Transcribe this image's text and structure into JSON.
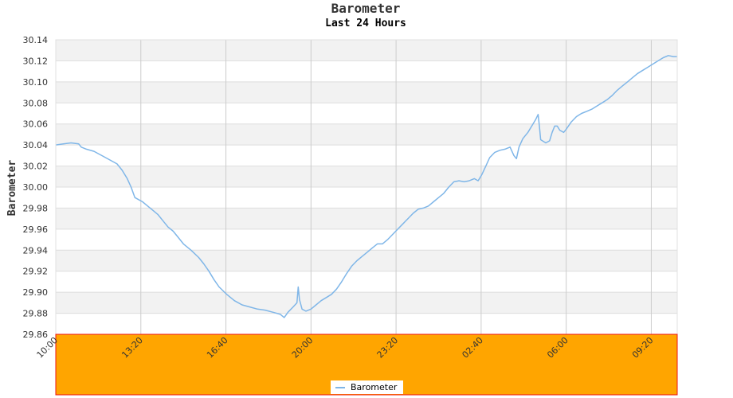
{
  "chart_data": {
    "type": "line",
    "title": "Barometer",
    "subtitle": "Last 24 Hours",
    "ylabel": "Barometer",
    "xlabel": "",
    "ylim": [
      29.86,
      30.14
    ],
    "ystep": 0.02,
    "xrange_hours": [
      0,
      24.35
    ],
    "x_ticks": [
      {
        "label": "10:00",
        "h": 0
      },
      {
        "label": "13:20",
        "h": 3.3333
      },
      {
        "label": "16:40",
        "h": 6.6667
      },
      {
        "label": "20:00",
        "h": 10
      },
      {
        "label": "23:20",
        "h": 13.3333
      },
      {
        "label": "02:40",
        "h": 16.6667
      },
      {
        "label": "06:00",
        "h": 20
      },
      {
        "label": "09:20",
        "h": 23.3333
      }
    ],
    "grid": true,
    "legend_position": "bottom-center",
    "colors": {
      "line": "#7fb6e8",
      "band": "#f2f2f2",
      "footer": "#ffa500",
      "footer_border": "#ee1111",
      "gridline": "#cccccc"
    },
    "series": [
      {
        "name": "Barometer",
        "points": [
          [
            0.0,
            30.04
          ],
          [
            0.3,
            30.041
          ],
          [
            0.6,
            30.042
          ],
          [
            0.9,
            30.041
          ],
          [
            1.0,
            30.038
          ],
          [
            1.2,
            30.036
          ],
          [
            1.5,
            30.034
          ],
          [
            1.8,
            30.03
          ],
          [
            2.1,
            30.026
          ],
          [
            2.4,
            30.022
          ],
          [
            2.6,
            30.016
          ],
          [
            2.8,
            30.008
          ],
          [
            2.95,
            30.0
          ],
          [
            3.1,
            29.99
          ],
          [
            3.4,
            29.986
          ],
          [
            3.6,
            29.982
          ],
          [
            3.8,
            29.978
          ],
          [
            4.0,
            29.974
          ],
          [
            4.2,
            29.968
          ],
          [
            4.4,
            29.962
          ],
          [
            4.6,
            29.958
          ],
          [
            4.8,
            29.952
          ],
          [
            5.0,
            29.946
          ],
          [
            5.3,
            29.94
          ],
          [
            5.6,
            29.933
          ],
          [
            5.8,
            29.927
          ],
          [
            6.0,
            29.92
          ],
          [
            6.2,
            29.912
          ],
          [
            6.4,
            29.905
          ],
          [
            6.7,
            29.898
          ],
          [
            7.0,
            29.892
          ],
          [
            7.3,
            29.888
          ],
          [
            7.6,
            29.886
          ],
          [
            7.9,
            29.884
          ],
          [
            8.2,
            29.883
          ],
          [
            8.5,
            29.881
          ],
          [
            8.8,
            29.879
          ],
          [
            8.95,
            29.876
          ],
          [
            9.1,
            29.881
          ],
          [
            9.3,
            29.886
          ],
          [
            9.45,
            29.89
          ],
          [
            9.5,
            29.905
          ],
          [
            9.55,
            29.893
          ],
          [
            9.65,
            29.884
          ],
          [
            9.8,
            29.882
          ],
          [
            10.0,
            29.884
          ],
          [
            10.2,
            29.888
          ],
          [
            10.4,
            29.892
          ],
          [
            10.6,
            29.895
          ],
          [
            10.8,
            29.898
          ],
          [
            11.0,
            29.903
          ],
          [
            11.2,
            29.91
          ],
          [
            11.4,
            29.918
          ],
          [
            11.6,
            29.925
          ],
          [
            11.8,
            29.93
          ],
          [
            12.0,
            29.934
          ],
          [
            12.2,
            29.938
          ],
          [
            12.4,
            29.942
          ],
          [
            12.6,
            29.946
          ],
          [
            12.8,
            29.946
          ],
          [
            13.0,
            29.95
          ],
          [
            13.2,
            29.955
          ],
          [
            13.4,
            29.96
          ],
          [
            13.6,
            29.965
          ],
          [
            13.8,
            29.97
          ],
          [
            14.0,
            29.975
          ],
          [
            14.2,
            29.979
          ],
          [
            14.4,
            29.98
          ],
          [
            14.6,
            29.982
          ],
          [
            14.8,
            29.986
          ],
          [
            15.0,
            29.99
          ],
          [
            15.2,
            29.994
          ],
          [
            15.4,
            30.0
          ],
          [
            15.6,
            30.005
          ],
          [
            15.8,
            30.006
          ],
          [
            16.0,
            30.005
          ],
          [
            16.2,
            30.006
          ],
          [
            16.4,
            30.008
          ],
          [
            16.55,
            30.006
          ],
          [
            16.7,
            30.012
          ],
          [
            16.85,
            30.02
          ],
          [
            17.0,
            30.028
          ],
          [
            17.2,
            30.033
          ],
          [
            17.4,
            30.035
          ],
          [
            17.6,
            30.036
          ],
          [
            17.8,
            30.038
          ],
          [
            17.95,
            30.03
          ],
          [
            18.05,
            30.027
          ],
          [
            18.15,
            30.038
          ],
          [
            18.3,
            30.046
          ],
          [
            18.5,
            30.052
          ],
          [
            18.65,
            30.058
          ],
          [
            18.8,
            30.064
          ],
          [
            18.9,
            30.069
          ],
          [
            18.95,
            30.058
          ],
          [
            19.0,
            30.045
          ],
          [
            19.2,
            30.042
          ],
          [
            19.35,
            30.044
          ],
          [
            19.45,
            30.052
          ],
          [
            19.55,
            30.058
          ],
          [
            19.65,
            30.058
          ],
          [
            19.75,
            30.054
          ],
          [
            19.9,
            30.052
          ],
          [
            20.0,
            30.055
          ],
          [
            20.2,
            30.062
          ],
          [
            20.4,
            30.067
          ],
          [
            20.6,
            30.07
          ],
          [
            20.8,
            30.072
          ],
          [
            21.0,
            30.074
          ],
          [
            21.2,
            30.077
          ],
          [
            21.4,
            30.08
          ],
          [
            21.6,
            30.083
          ],
          [
            21.8,
            30.087
          ],
          [
            22.0,
            30.092
          ],
          [
            22.2,
            30.096
          ],
          [
            22.4,
            30.1
          ],
          [
            22.6,
            30.104
          ],
          [
            22.8,
            30.108
          ],
          [
            23.0,
            30.111
          ],
          [
            23.2,
            30.114
          ],
          [
            23.4,
            30.117
          ],
          [
            23.6,
            30.12
          ],
          [
            23.8,
            30.123
          ],
          [
            24.0,
            30.125
          ],
          [
            24.2,
            30.124
          ],
          [
            24.35,
            30.124
          ]
        ]
      }
    ]
  }
}
